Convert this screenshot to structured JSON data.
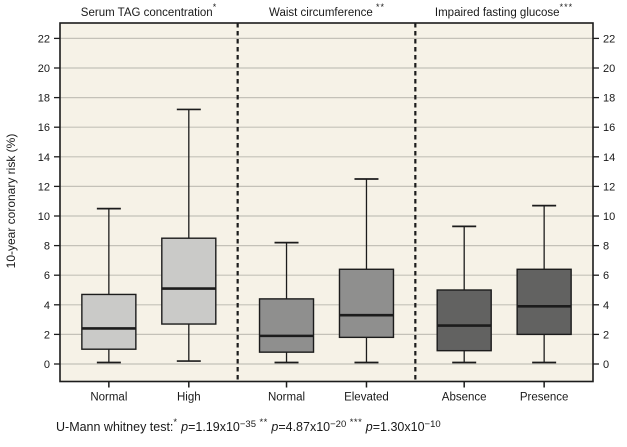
{
  "colors": {
    "plot_bg": "#f6f2e7",
    "gridline": "#c4c1b8",
    "ink": "#1c1c1c",
    "text": "#1a1a1a"
  },
  "footnote": {
    "prefix": "U-Mann whitney test:",
    "tests": [
      {
        "stars": "*",
        "p": "p",
        "value": "=1.19x10",
        "exponent": "−35"
      },
      {
        "stars": "**",
        "p": "p",
        "value": "=4.87x10",
        "exponent": "−20"
      },
      {
        "stars": "***",
        "p": "p",
        "value": "=1.30x10",
        "exponent": "−10"
      }
    ]
  },
  "chart_data": {
    "type": "boxplot",
    "ylabel": "10-year coronary risk (%)",
    "ylim": [
      -1.2,
      23.0
    ],
    "yticks": [
      0,
      2,
      4,
      6,
      8,
      10,
      12,
      14,
      16,
      18,
      20,
      22
    ],
    "grid": "horizontal",
    "panels": [
      {
        "title": "Serum TAG concentration",
        "title_mark": "*",
        "box_fill": "#cacac8",
        "groups": [
          {
            "label": "Normal",
            "whisker_low": 0.1,
            "q1": 1.0,
            "median": 2.4,
            "q3": 4.7,
            "whisker_high": 10.5
          },
          {
            "label": "High",
            "whisker_low": 0.2,
            "q1": 2.7,
            "median": 5.1,
            "q3": 8.5,
            "whisker_high": 17.2
          }
        ]
      },
      {
        "title": "Waist circumference ",
        "title_mark": "**",
        "box_fill": "#8f8f8e",
        "groups": [
          {
            "label": "Normal",
            "whisker_low": 0.1,
            "q1": 0.8,
            "median": 1.9,
            "q3": 4.4,
            "whisker_high": 8.2
          },
          {
            "label": "Elevated",
            "whisker_low": 0.1,
            "q1": 1.8,
            "median": 3.3,
            "q3": 6.4,
            "whisker_high": 12.5
          }
        ]
      },
      {
        "title": "Impaired fasting glucose",
        "title_mark": "***",
        "box_fill": "#626261",
        "groups": [
          {
            "label": "Absence",
            "whisker_low": 0.1,
            "q1": 0.9,
            "median": 2.6,
            "q3": 5.0,
            "whisker_high": 9.3
          },
          {
            "label": "Presence",
            "whisker_low": 0.1,
            "q1": 2.0,
            "median": 3.9,
            "q3": 6.4,
            "whisker_high": 10.7
          }
        ]
      }
    ]
  }
}
